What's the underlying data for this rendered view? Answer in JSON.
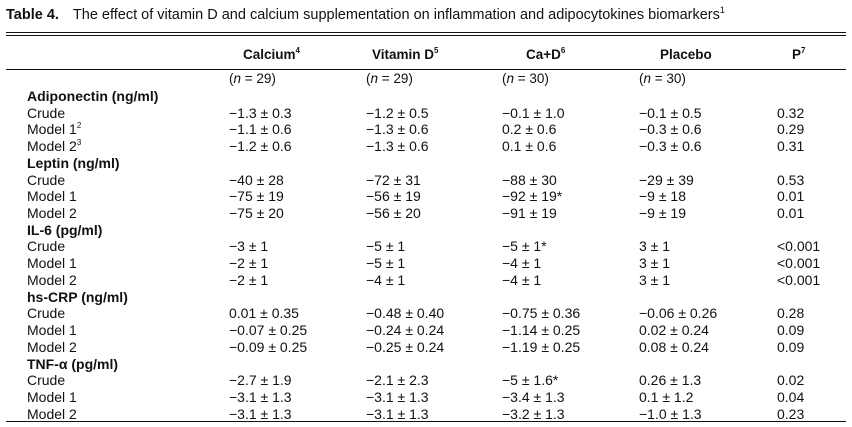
{
  "caption": {
    "number": "Table 4.",
    "title": "The effect of vitamin D and calcium supplementation on inflammation and adipocytokines biomarkers",
    "footnote": "1"
  },
  "columns": [
    {
      "label": "Calcium",
      "sup": "4",
      "n": "(n = 29)"
    },
    {
      "label": "Vitamin D",
      "sup": "5",
      "n": "(n = 29)"
    },
    {
      "label": "Ca+D",
      "sup": "6",
      "n": "(n = 30)"
    },
    {
      "label": "Placebo",
      "sup": "",
      "n": "(n = 30)"
    },
    {
      "label": "P",
      "sup": "7",
      "n": ""
    }
  ],
  "sections": [
    {
      "title": "Adiponectin (ng/ml)",
      "rows": [
        {
          "label": "Crude",
          "sup": "",
          "values": [
            "−1.3 ± 0.3",
            "−1.2 ± 0.5",
            "−0.1 ± 1.0",
            "−0.1 ± 0.5",
            "0.32"
          ]
        },
        {
          "label": "Model 1",
          "sup": "2",
          "values": [
            "−1.1 ± 0.6",
            "−1.3 ± 0.6",
            "0.2 ± 0.6",
            "−0.3 ± 0.6",
            "0.29"
          ]
        },
        {
          "label": "Model 2",
          "sup": "3",
          "values": [
            "−1.2 ± 0.6",
            "−1.3 ± 0.6",
            "0.1 ± 0.6",
            "−0.3 ± 0.6",
            "0.31"
          ]
        }
      ]
    },
    {
      "title": "Leptin (ng/ml)",
      "rows": [
        {
          "label": "Crude",
          "sup": "",
          "values": [
            "−40 ± 28",
            "−72 ± 31",
            "−88 ± 30",
            "−29 ± 39",
            "0.53"
          ]
        },
        {
          "label": "Model 1",
          "sup": "",
          "values": [
            "−75 ± 19",
            "−56 ± 19",
            "−92 ± 19*",
            "−9 ± 18",
            "0.01"
          ]
        },
        {
          "label": "Model 2",
          "sup": "",
          "values": [
            "−75 ± 20",
            "−56 ± 20",
            "−91 ± 19",
            "−9 ± 19",
            "0.01"
          ]
        }
      ]
    },
    {
      "title": "IL-6 (pg/ml)",
      "rows": [
        {
          "label": "Crude",
          "sup": "",
          "values": [
            "−3 ± 1",
            "−5 ± 1",
            "−5 ± 1*",
            "3 ± 1",
            "<0.001"
          ]
        },
        {
          "label": "Model 1",
          "sup": "",
          "values": [
            "−2 ± 1",
            "−5 ± 1",
            "−4 ± 1",
            "3 ± 1",
            "<0.001"
          ]
        },
        {
          "label": "Model 2",
          "sup": "",
          "values": [
            "−2 ± 1",
            "−4 ± 1",
            "−4 ± 1",
            "3 ± 1",
            "<0.001"
          ]
        }
      ]
    },
    {
      "title": "hs-CRP (ng/ml)",
      "rows": [
        {
          "label": "Crude",
          "sup": "",
          "values": [
            "0.01 ± 0.35",
            "−0.48 ± 0.40",
            "−0.75 ± 0.36",
            "−0.06 ± 0.26",
            "0.28"
          ]
        },
        {
          "label": "Model 1",
          "sup": "",
          "values": [
            "−0.07 ± 0.25",
            "−0.24 ± 0.24",
            "−1.14 ± 0.25",
            "0.02 ± 0.24",
            "0.09"
          ]
        },
        {
          "label": "Model 2",
          "sup": "",
          "values": [
            "−0.09 ± 0.25",
            "−0.25 ± 0.24",
            "−1.19 ± 0.25",
            "0.08 ± 0.24",
            "0.09"
          ]
        }
      ]
    },
    {
      "title": "TNF-α (pg/ml)",
      "rows": [
        {
          "label": "Crude",
          "sup": "",
          "values": [
            "−2.7 ± 1.9",
            "−2.1 ± 2.3",
            "−5 ± 1.6*",
            "0.26 ± 1.3",
            "0.02"
          ]
        },
        {
          "label": "Model 1",
          "sup": "",
          "values": [
            "−3.1 ± 1.3",
            "−3.1 ± 1.3",
            "−3.4 ± 1.3",
            "0.1 ± 1.2",
            "0.04"
          ]
        },
        {
          "label": "Model 2",
          "sup": "",
          "values": [
            "−3.1 ± 1.3",
            "−3.1 ± 1.3",
            "−3.2 ± 1.3",
            "−1.0 ± 1.3",
            "0.23"
          ]
        }
      ]
    }
  ]
}
